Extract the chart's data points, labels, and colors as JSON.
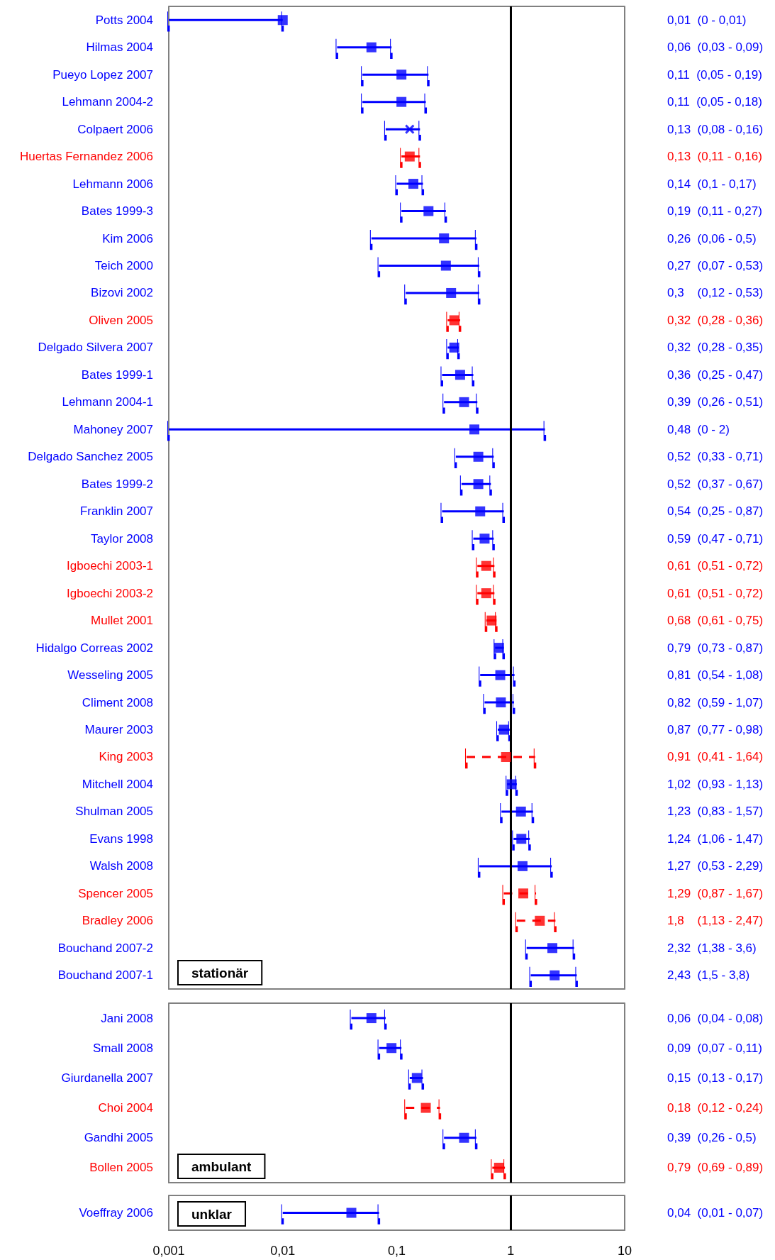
{
  "chart_data": [
    {
      "type": "scatter",
      "orientation": "horizontal",
      "log": "x",
      "grid": false,
      "tick_labels": "y",
      "categories": [
        "Potts 2004",
        "Hilmas 2004",
        "Pueyo Lopez 2007",
        "Lehmann 2004-2",
        "Colpaert 2006",
        "Huertas Fernandez 2006",
        "Lehmann 2006",
        "Bates 1999-3",
        "Kim 2006",
        "Teich 2000",
        "Bizovi 2002",
        "Oliven 2005",
        "Delgado Silvera 2007",
        "Bates 1999-1",
        "Lehmann 2004-1",
        "Mahoney 2007",
        "Delgado Sanchez 2005",
        "Bates 1999-2",
        "Franklin 2007",
        "Taylor 2008",
        "Igboechi 2003-1",
        "Igboechi 2003-2",
        "Mullet 2001",
        "Hidalgo Correas 2002",
        "Wesseling 2005",
        "Climent 2008",
        "Maurer 2003",
        "King 2003",
        "Mitchell 2004",
        "Shulman 2005",
        "Evans 1998",
        "Walsh 2008",
        "Spencer 2005",
        "Bradley 2006",
        "Bouchand 2007-2",
        "Bouchand 2007-1"
      ],
      "series": [
        {
          "color": "#0000ff",
          "marker": "square",
          "line_style": "solid",
          "values": [
            0.01,
            0.06,
            0.11,
            0.11,
            null,
            null,
            0.14,
            0.19,
            0.26,
            0.27,
            0.3,
            null,
            0.32,
            0.36,
            0.39,
            0.48,
            0.52,
            0.52,
            0.54,
            0.59,
            null,
            null,
            null,
            0.79,
            0.81,
            0.82,
            0.87,
            null,
            1.02,
            1.23,
            1.24,
            1.27,
            null,
            null,
            2.32,
            2.43
          ],
          "errors": [
            [
              0.001,
              0.01
            ],
            [
              0.03,
              0.09
            ],
            [
              0.05,
              0.19
            ],
            [
              0.05,
              0.18
            ],
            null,
            null,
            [
              0.1,
              0.17
            ],
            [
              0.11,
              0.27
            ],
            [
              0.06,
              0.5
            ],
            [
              0.07,
              0.53
            ],
            [
              0.12,
              0.53
            ],
            null,
            [
              0.28,
              0.35
            ],
            [
              0.25,
              0.47
            ],
            [
              0.26,
              0.51
            ],
            [
              0.001,
              2
            ],
            [
              0.33,
              0.71
            ],
            [
              0.37,
              0.67
            ],
            [
              0.25,
              0.87
            ],
            [
              0.47,
              0.71
            ],
            null,
            null,
            null,
            [
              0.73,
              0.87
            ],
            [
              0.54,
              1.08
            ],
            [
              0.59,
              1.07
            ],
            [
              0.77,
              0.98
            ],
            null,
            [
              0.93,
              1.13
            ],
            [
              0.83,
              1.57
            ],
            [
              1.06,
              1.47
            ],
            [
              0.53,
              2.29
            ],
            null,
            null,
            [
              1.38,
              3.6
            ],
            [
              1.5,
              3.8
            ]
          ]
        },
        {
          "color": "#0000ff",
          "marker": "cross",
          "line_style": "solid",
          "values": [
            null,
            null,
            null,
            null,
            0.13,
            null,
            null,
            null,
            null,
            null,
            null,
            null,
            null,
            null,
            null,
            null,
            null,
            null,
            null,
            null,
            null,
            null,
            null,
            null,
            null,
            null,
            null,
            null,
            null,
            null,
            null,
            null,
            null,
            null,
            null,
            null
          ],
          "errors": [
            null,
            null,
            null,
            null,
            [
              0.08,
              0.16
            ],
            null,
            null,
            null,
            null,
            null,
            null,
            null,
            null,
            null,
            null,
            null,
            null,
            null,
            null,
            null,
            null,
            null,
            null,
            null,
            null,
            null,
            null,
            null,
            null,
            null,
            null,
            null,
            null,
            null,
            null,
            null
          ]
        },
        {
          "color": "#ff0000",
          "marker": "square",
          "line_style": "solid",
          "values": [
            null,
            null,
            null,
            null,
            null,
            0.13,
            null,
            null,
            null,
            null,
            null,
            0.32,
            null,
            null,
            null,
            null,
            null,
            null,
            null,
            null,
            0.61,
            0.61,
            0.68,
            null,
            null,
            null,
            null,
            null,
            null,
            null,
            null,
            null,
            null,
            null,
            null,
            null
          ],
          "errors": [
            null,
            null,
            null,
            null,
            null,
            [
              0.11,
              0.16
            ],
            null,
            null,
            null,
            null,
            null,
            [
              0.28,
              0.36
            ],
            null,
            null,
            null,
            null,
            null,
            null,
            null,
            null,
            [
              0.51,
              0.72
            ],
            [
              0.51,
              0.72
            ],
            [
              0.61,
              0.75
            ],
            null,
            null,
            null,
            null,
            null,
            null,
            null,
            null,
            null,
            null,
            null,
            null,
            null
          ]
        },
        {
          "color": "#ff0000",
          "marker": "square",
          "line_style": "dashed",
          "values": [
            null,
            null,
            null,
            null,
            null,
            null,
            null,
            null,
            null,
            null,
            null,
            null,
            null,
            null,
            null,
            null,
            null,
            null,
            null,
            null,
            null,
            null,
            null,
            null,
            null,
            null,
            null,
            0.91,
            null,
            null,
            null,
            null,
            1.29,
            1.8,
            null,
            null
          ],
          "errors": [
            null,
            null,
            null,
            null,
            null,
            null,
            null,
            null,
            null,
            null,
            null,
            null,
            null,
            null,
            null,
            null,
            null,
            null,
            null,
            null,
            null,
            null,
            null,
            null,
            null,
            null,
            null,
            [
              0.41,
              1.64
            ],
            null,
            null,
            null,
            null,
            [
              0.87,
              1.67
            ],
            [
              1.13,
              2.47
            ],
            null,
            null
          ]
        }
      ],
      "value_labels": [
        "0,01  (0 - 0,01)",
        "0,06  (0,03 - 0,09)",
        "0,11  (0,05 - 0,19)",
        "0,11  (0,05 - 0,18)",
        "0,13  (0,08 - 0,16)",
        "0,13  (0,11 - 0,16)",
        "0,14  (0,1 - 0,17)",
        "0,19  (0,11 - 0,27)",
        "0,26  (0,06 - 0,5)",
        "0,27  (0,07 - 0,53)",
        "0,3    (0,12 - 0,53)",
        "0,32  (0,28 - 0,36)",
        "0,32  (0,28 - 0,35)",
        "0,36  (0,25 - 0,47)",
        "0,39  (0,26 - 0,51)",
        "0,48  (0 - 2)",
        "0,52  (0,33 - 0,71)",
        "0,52  (0,37 - 0,67)",
        "0,54  (0,25 - 0,87)",
        "0,59  (0,47 - 0,71)",
        "0,61  (0,51 - 0,72)",
        "0,61  (0,51 - 0,72)",
        "0,68  (0,61 - 0,75)",
        "0,79  (0,73 - 0,87)",
        "0,81  (0,54 - 1,08)",
        "0,82  (0,59 - 1,07)",
        "0,87  (0,77 - 0,98)",
        "0,91  (0,41 - 1,64)",
        "1,02  (0,93 - 1,13)",
        "1,23  (0,83 - 1,57)",
        "1,24  (1,06 - 1,47)",
        "1,27  (0,53 - 2,29)",
        "1,29  (0,87 - 1,67)",
        "1,8    (1,13 - 2,47)",
        "2,32  (1,38 - 3,6)",
        "2,43  (1,5 - 3,8)"
      ],
      "xlim": [
        0.001,
        10
      ],
      "ref_lines": [
        {
          "axis": "x",
          "value": 1,
          "color": "#000000",
          "line_style": "solid"
        }
      ],
      "annotations": [
        "stationär"
      ]
    },
    {
      "type": "scatter",
      "orientation": "horizontal",
      "log": "x",
      "grid": false,
      "tick_labels": "y",
      "categories": [
        "Jani 2008",
        "Small 2008",
        "Giurdanella 2007",
        "Choi 2004",
        "Gandhi 2005",
        "Bollen 2005"
      ],
      "series": [
        {
          "color": "#0000ff",
          "marker": "square",
          "line_style": "solid",
          "values": [
            0.06,
            0.09,
            0.15,
            null,
            0.39,
            null
          ],
          "errors": [
            [
              0.04,
              0.08
            ],
            [
              0.07,
              0.11
            ],
            [
              0.13,
              0.17
            ],
            null,
            [
              0.26,
              0.5
            ],
            null
          ]
        },
        {
          "color": "#ff0000",
          "marker": "square",
          "line_style": "solid",
          "values": [
            null,
            null,
            null,
            null,
            null,
            0.79
          ],
          "errors": [
            null,
            null,
            null,
            null,
            null,
            [
              0.69,
              0.89
            ]
          ]
        },
        {
          "color": "#ff0000",
          "marker": "square",
          "line_style": "dashed",
          "values": [
            null,
            null,
            null,
            0.18,
            null,
            null
          ],
          "errors": [
            null,
            null,
            null,
            [
              0.12,
              0.24
            ],
            null,
            null
          ]
        }
      ],
      "value_labels": [
        "0,06  (0,04 - 0,08)",
        "0,09  (0,07 - 0,11)",
        "0,15  (0,13 - 0,17)",
        "0,18  (0,12 - 0,24)",
        "0,39  (0,26 - 0,5)",
        "0,79  (0,69 - 0,89)"
      ],
      "xlim": [
        0.001,
        10
      ],
      "ref_lines": [
        {
          "axis": "x",
          "value": 1,
          "color": "#000000",
          "line_style": "solid"
        }
      ],
      "annotations": [
        "ambulant"
      ]
    },
    {
      "type": "scatter",
      "orientation": "horizontal",
      "log": "x",
      "grid": false,
      "categories": [
        "Voeffray 2006"
      ],
      "series": [
        {
          "color": "#0000ff",
          "marker": "square",
          "line_style": "solid",
          "values": [
            0.04
          ],
          "errors": [
            [
              0.01,
              0.07
            ]
          ]
        }
      ],
      "value_labels": [
        "0,04  (0,01 - 0,07)"
      ],
      "xlim": [
        0.001,
        10
      ],
      "xticks": [
        {
          "value": 0.001,
          "label": "0,001"
        },
        {
          "value": 0.01,
          "label": "0,01"
        },
        {
          "value": 0.1,
          "label": "0,1"
        },
        1,
        10
      ],
      "ref_lines": [
        {
          "axis": "x",
          "value": 1,
          "color": "#000000",
          "line_style": "solid"
        }
      ],
      "annotations": [
        "unklar"
      ]
    }
  ]
}
